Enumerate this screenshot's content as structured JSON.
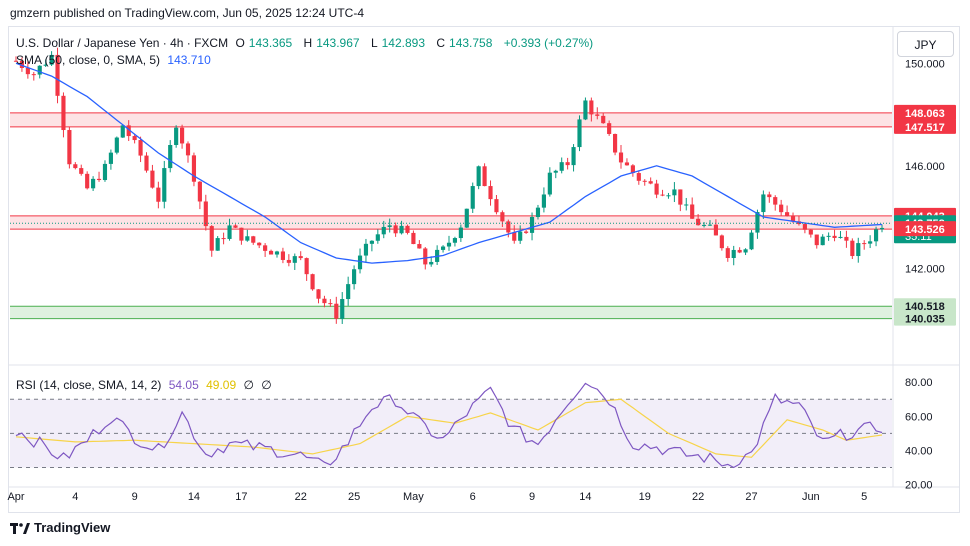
{
  "header": {
    "published_line": "gmzern published on TradingView.com, Jun 05, 2025 12:24 UTC-4",
    "symbol_title": "U.S. Dollar / Japanese Yen · 4h · FXCM",
    "ohlc": {
      "o_label": "O",
      "o": "143.365",
      "h_label": "H",
      "h": "143.967",
      "l_label": "L",
      "l": "142.893",
      "c_label": "C",
      "c": "143.758",
      "change": "+0.393 (+0.27%)"
    },
    "sma_label": "SMA (50, close, 0, SMA, 5)",
    "sma_value": "143.710",
    "rsi_label": "RSI (14, close, SMA, 14, 2)",
    "rsi_value": "54.05",
    "rsi_ma_value": "49.09",
    "rsi_extra_1": "∅",
    "rsi_extra_2": "∅"
  },
  "currency_button": "JPY",
  "footer": {
    "brand": "TradingView"
  },
  "colors": {
    "up": "#089981",
    "down": "#f23645",
    "sma": "#2962ff",
    "rsi": "#7e57c2",
    "rsi_ma": "#f7d44a"
  },
  "chart_data": {
    "type": "candlestick",
    "timeframe": "4h",
    "x_ticks": [
      "Apr",
      "4",
      "9",
      "14",
      "17",
      "22",
      "25",
      "May",
      "6",
      "9",
      "14",
      "19",
      "22",
      "27",
      "Jun",
      "5"
    ],
    "price_axis": {
      "ticks": [
        "150.000",
        "148.000",
        "146.000",
        "142.000"
      ],
      "range": [
        139.2,
        151.3
      ]
    },
    "price_labels": [
      {
        "value": "148.063",
        "kind": "resistance"
      },
      {
        "value": "147.517",
        "kind": "resistance"
      },
      {
        "value": "144.043",
        "kind": "resistance"
      },
      {
        "value": "143.758",
        "kind": "last",
        "countdown": "35:11"
      },
      {
        "value": "143.526",
        "kind": "resistance"
      },
      {
        "value": "140.518",
        "kind": "support"
      },
      {
        "value": "140.035",
        "kind": "support"
      }
    ],
    "zones": [
      {
        "from": 147.517,
        "to": 148.063,
        "kind": "resistance"
      },
      {
        "from": 143.526,
        "to": 144.043,
        "kind": "resistance"
      },
      {
        "from": 140.035,
        "to": 140.518,
        "kind": "support"
      }
    ],
    "close_path": [
      [
        0,
        150.1
      ],
      [
        3,
        149.6
      ],
      [
        6,
        150.3
      ],
      [
        9,
        146.2
      ],
      [
        12,
        145.1
      ],
      [
        15,
        145.9
      ],
      [
        18,
        147.6
      ],
      [
        21,
        146.4
      ],
      [
        24,
        144.7
      ],
      [
        27,
        147.7
      ],
      [
        30,
        145.6
      ],
      [
        33,
        142.7
      ],
      [
        36,
        143.6
      ],
      [
        39,
        143.1
      ],
      [
        42,
        142.8
      ],
      [
        45,
        142.5
      ],
      [
        48,
        142.3
      ],
      [
        51,
        140.9
      ],
      [
        54,
        140.2
      ],
      [
        57,
        142.0
      ],
      [
        60,
        143.1
      ],
      [
        63,
        143.7
      ],
      [
        66,
        143.3
      ],
      [
        69,
        142.2
      ],
      [
        72,
        142.7
      ],
      [
        75,
        143.7
      ],
      [
        78,
        145.8
      ],
      [
        81,
        144.4
      ],
      [
        84,
        142.9
      ],
      [
        87,
        143.9
      ],
      [
        90,
        145.6
      ],
      [
        93,
        146.1
      ],
      [
        96,
        148.5
      ],
      [
        99,
        147.5
      ],
      [
        102,
        146.2
      ],
      [
        105,
        145.5
      ],
      [
        108,
        145.1
      ],
      [
        111,
        145.0
      ],
      [
        114,
        143.9
      ],
      [
        117,
        143.5
      ],
      [
        120,
        142.6
      ],
      [
        123,
        142.9
      ],
      [
        126,
        144.9
      ],
      [
        129,
        144.3
      ],
      [
        132,
        143.6
      ],
      [
        135,
        143.0
      ],
      [
        138,
        143.4
      ],
      [
        141,
        142.6
      ],
      [
        144,
        143.2
      ],
      [
        146,
        143.758
      ]
    ],
    "sma_path": [
      [
        0,
        150.0
      ],
      [
        6,
        149.5
      ],
      [
        12,
        148.7
      ],
      [
        18,
        147.6
      ],
      [
        24,
        146.5
      ],
      [
        30,
        145.6
      ],
      [
        36,
        144.8
      ],
      [
        42,
        144.0
      ],
      [
        48,
        143.0
      ],
      [
        54,
        142.4
      ],
      [
        60,
        142.2
      ],
      [
        66,
        142.3
      ],
      [
        72,
        142.5
      ],
      [
        78,
        143.0
      ],
      [
        84,
        143.4
      ],
      [
        90,
        143.8
      ],
      [
        96,
        144.8
      ],
      [
        102,
        145.6
      ],
      [
        108,
        146.0
      ],
      [
        114,
        145.6
      ],
      [
        120,
        144.8
      ],
      [
        126,
        144.0
      ],
      [
        132,
        143.8
      ],
      [
        138,
        143.6
      ],
      [
        146,
        143.71
      ]
    ],
    "rsi": {
      "axis_ticks": [
        "80.00",
        "60.00",
        "40.00",
        "20.00"
      ],
      "range": [
        18,
        86
      ],
      "bands": {
        "upper": 70,
        "middle": 50,
        "lower": 30
      },
      "rsi_path": [
        [
          0,
          52
        ],
        [
          4,
          44
        ],
        [
          8,
          35
        ],
        [
          12,
          46
        ],
        [
          16,
          60
        ],
        [
          20,
          48
        ],
        [
          24,
          40
        ],
        [
          28,
          62
        ],
        [
          32,
          38
        ],
        [
          36,
          44
        ],
        [
          40,
          42
        ],
        [
          44,
          40
        ],
        [
          48,
          37
        ],
        [
          52,
          30
        ],
        [
          56,
          45
        ],
        [
          60,
          66
        ],
        [
          64,
          70
        ],
        [
          68,
          56
        ],
        [
          72,
          46
        ],
        [
          76,
          62
        ],
        [
          80,
          75
        ],
        [
          84,
          52
        ],
        [
          88,
          44
        ],
        [
          92,
          64
        ],
        [
          96,
          82
        ],
        [
          100,
          70
        ],
        [
          104,
          44
        ],
        [
          108,
          42
        ],
        [
          112,
          38
        ],
        [
          116,
          36
        ],
        [
          120,
          32
        ],
        [
          124,
          38
        ],
        [
          128,
          70
        ],
        [
          132,
          66
        ],
        [
          136,
          44
        ],
        [
          140,
          50
        ],
        [
          146,
          54.05
        ]
      ],
      "ma_path": [
        [
          0,
          48
        ],
        [
          10,
          45
        ],
        [
          20,
          46
        ],
        [
          30,
          44
        ],
        [
          40,
          42
        ],
        [
          50,
          38
        ],
        [
          58,
          44
        ],
        [
          66,
          60
        ],
        [
          74,
          56
        ],
        [
          80,
          62
        ],
        [
          88,
          52
        ],
        [
          96,
          68
        ],
        [
          102,
          70
        ],
        [
          110,
          50
        ],
        [
          118,
          38
        ],
        [
          124,
          36
        ],
        [
          130,
          58
        ],
        [
          136,
          52
        ],
        [
          140,
          46
        ],
        [
          146,
          49.09
        ]
      ]
    }
  }
}
